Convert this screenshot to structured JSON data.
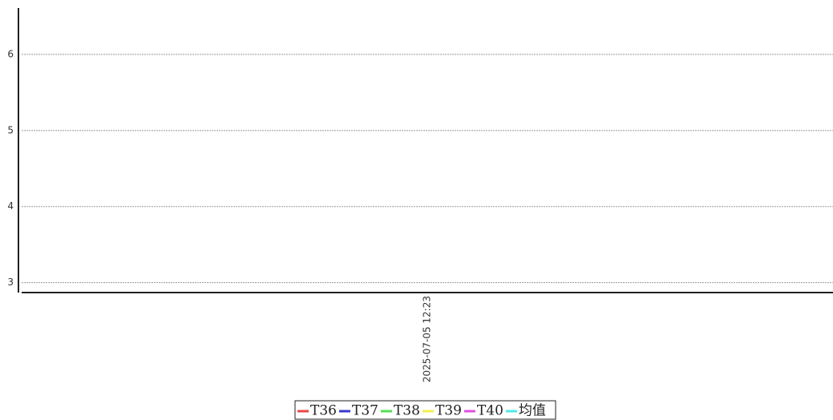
{
  "chart_data": {
    "type": "line",
    "categories": [
      "2025-07-05 12:23"
    ],
    "series": [
      {
        "name": "T36",
        "color": "#e84848",
        "values": [
          null
        ]
      },
      {
        "name": "T37",
        "color": "#3a3ad0",
        "values": [
          null
        ]
      },
      {
        "name": "T38",
        "color": "#50e050",
        "values": [
          null
        ]
      },
      {
        "name": "T39",
        "color": "#f0f050",
        "values": [
          null
        ]
      },
      {
        "name": "T40",
        "color": "#e050e0",
        "values": [
          null
        ]
      },
      {
        "name": "均值",
        "color": "#50e8e8",
        "values": [
          null
        ]
      }
    ],
    "ylim": [
      2.87,
      6.61
    ],
    "yticks": [
      3,
      4,
      5,
      6
    ],
    "grid": true,
    "legend": "bottom"
  }
}
